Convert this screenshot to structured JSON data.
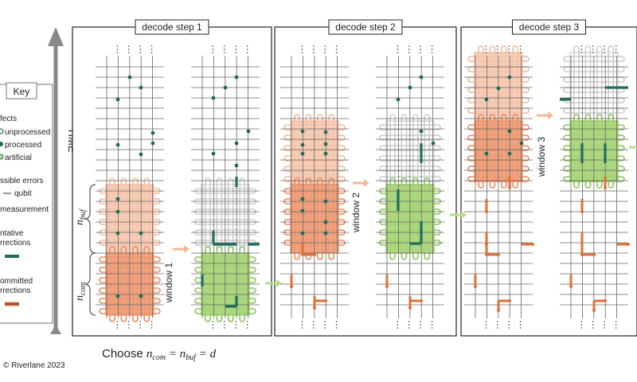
{
  "key": {
    "title": "Key",
    "defects_heading": "fects",
    "unprocessed": "unprocessed",
    "processed": "processed",
    "artificial": "artificial",
    "errors_heading": "ssible errors",
    "qubit": "qubit",
    "measurement": "measurement",
    "tentative_heading_1": "ntative",
    "tentative_heading_2": "rrections",
    "committed_heading_1": "ommitted",
    "committed_heading_2": "rrections"
  },
  "time_label": "TIME",
  "panels": [
    {
      "title": "decode step 1",
      "window_label": "window 1"
    },
    {
      "title": "decode step 2",
      "window_label": "window 2"
    },
    {
      "title": "decode step 3",
      "window_label": "window 3"
    }
  ],
  "brace_labels": {
    "buf_base": "n",
    "buf_sub": "buf",
    "com_base": "n",
    "com_sub": "com"
  },
  "formula": {
    "prefix": "Choose ",
    "expr": "n",
    "sub1": "com",
    "eq1": " = n",
    "sub2": "buf",
    "eq2": " = d"
  },
  "copyright": "© Riverlane 2023",
  "colors": {
    "defect": "#1f6b5c",
    "tentative": "#1f6b5c",
    "committed": "#e2703a",
    "commit_region": "#ee9a73",
    "buffer_region": "#f6c6ad",
    "window_green": "#a9d57a",
    "arrow_peach": "#f4b99a",
    "arrow_green": "#b7dd8c"
  }
}
